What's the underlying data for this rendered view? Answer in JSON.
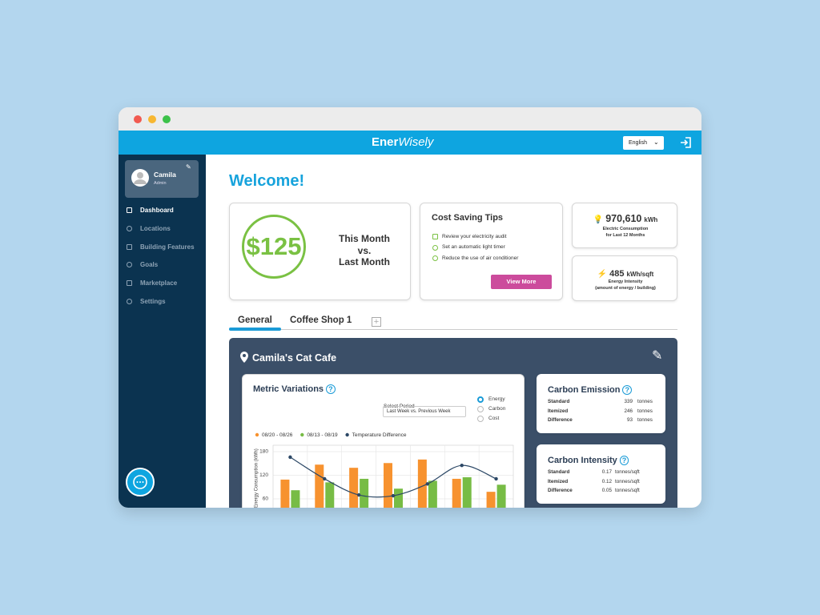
{
  "header": {
    "brand_bold": "Ener",
    "brand_italic": "Wisely",
    "language": "English"
  },
  "sidebar": {
    "user": {
      "name": "Camila",
      "role": "Admin"
    },
    "nav": [
      "Dashboard",
      "Locations",
      "Building Features",
      "Goals",
      "Marketplace",
      "Settings"
    ]
  },
  "welcome": "Welcome!",
  "savings": {
    "amount": "$125",
    "comparison": [
      "This Month",
      "vs.",
      "Last Month"
    ]
  },
  "tips": {
    "title": "Cost Saving Tips",
    "items": [
      "Review your electricity audit",
      "Set an automatic light timer",
      "Reduce the use of air conditioner"
    ],
    "button": "View More"
  },
  "stats": [
    {
      "value": "970,610",
      "unit": "kWh",
      "caption": [
        "Electric Consumption",
        "for Last 12 Months"
      ]
    },
    {
      "value": "485",
      "unit": "kWh/sqft",
      "caption": [
        "Energy Intensity",
        "(amount of energy / building)"
      ]
    }
  ],
  "tabs": [
    "General",
    "Coffee Shop 1"
  ],
  "location": "Camila's Cat Cafe",
  "metric": {
    "title": "Metric Variations",
    "period_label": "Select Period",
    "period": "Last Week vs. Previous Week",
    "options": [
      "Energy",
      "Carbon",
      "Cost"
    ]
  },
  "chart_data": {
    "type": "bar",
    "ylabel": "Energy Consumption (kWh)",
    "categories": [
      null,
      null,
      null,
      null,
      null,
      null,
      null
    ],
    "series": [
      {
        "name": "08/20 - 08/26",
        "color": "#f7922f",
        "values": [
          109,
          147,
          139,
          151,
          160,
          111,
          78
        ]
      },
      {
        "name": "08/13 - 08/19",
        "color": "#77bc45",
        "values": [
          82,
          102,
          111,
          86,
          106,
          115,
          96
        ]
      },
      {
        "name": "Temperature Difference",
        "color": "#2c4866",
        "type": "line",
        "values": [
          166,
          111,
          70,
          68,
          98,
          145,
          111
        ]
      }
    ],
    "ylim": [
      0,
      180
    ],
    "yticks": [
      60,
      120,
      180
    ],
    "grid": true
  },
  "carbon_emission": {
    "title": "Carbon Emission",
    "rows": [
      [
        "Standard",
        339,
        "tonnes"
      ],
      [
        "Itemized",
        246,
        "tonnes"
      ],
      [
        "Difference",
        93,
        "tonnes"
      ]
    ]
  },
  "carbon_intensity": {
    "title": "Carbon Intensity",
    "rows": [
      [
        "Standard",
        0.17,
        "tonnes/sqft"
      ],
      [
        "Itemized",
        0.12,
        "tonnes/sqft"
      ],
      [
        "Difference",
        0.05,
        "tonnes/sqft"
      ]
    ]
  }
}
